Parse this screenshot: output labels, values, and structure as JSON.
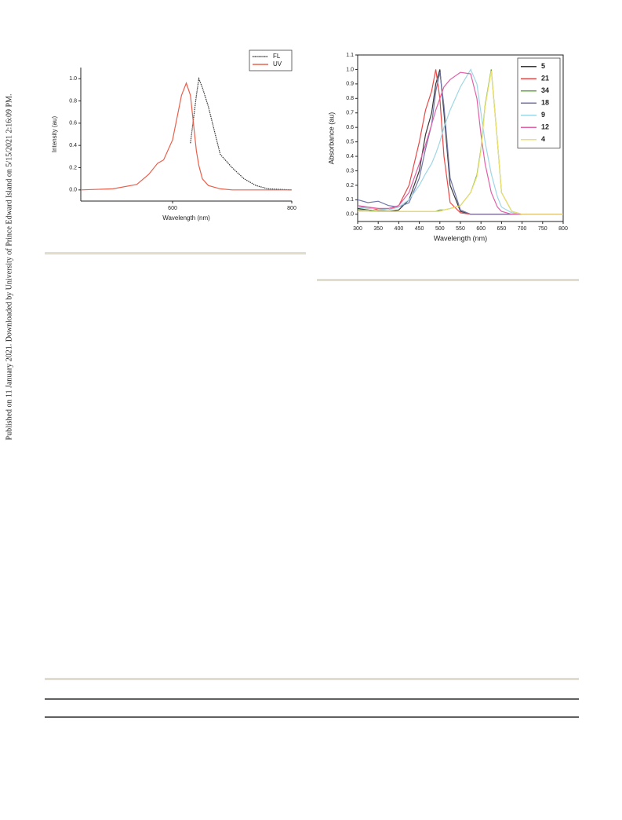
{
  "side_note": "Published on 11 January 2021. Downloaded by University of Prince Edward Island on 5/15/2021 2:16:09 PM.",
  "chart_data": [
    {
      "type": "line",
      "x_label": "Wavelength (nm)",
      "y_label": "Intensity (au)",
      "x": [
        446,
        500,
        540,
        560,
        575,
        585,
        600,
        615,
        623,
        630,
        640,
        644,
        650,
        660,
        680,
        700,
        720,
        740,
        760,
        800
      ],
      "series": [
        {
          "name": "FL",
          "color": "#333333",
          "style": "dotted",
          "values": [
            null,
            null,
            null,
            null,
            null,
            null,
            null,
            null,
            null,
            0.42,
            0.85,
            1.0,
            0.92,
            0.75,
            0.32,
            0.2,
            0.1,
            0.04,
            0.01,
            0.0
          ]
        },
        {
          "name": "UV",
          "color": "#e8604c",
          "style": "solid",
          "values": [
            0.0,
            0.01,
            0.05,
            0.14,
            0.24,
            0.27,
            0.45,
            0.85,
            0.96,
            0.85,
            0.35,
            0.22,
            0.1,
            0.04,
            0.01,
            0.0,
            0.0,
            0.0,
            0.0,
            0.0
          ]
        }
      ],
      "xlim": [
        446,
        800
      ],
      "xticks": [
        600,
        800
      ],
      "ylim": [
        -0.1,
        1.1
      ],
      "yticks": [
        {
          "value": 0,
          "label": "0.0"
        },
        {
          "value": 0.2,
          "label": "0.2"
        },
        {
          "value": 0.4,
          "label": "0.4"
        },
        {
          "value": 0.6,
          "label": "0.6"
        },
        {
          "value": 0.8,
          "label": "0.8"
        },
        {
          "value": 1,
          "label": "1.0"
        }
      ],
      "legend": "upper right",
      "frame": false
    },
    {
      "type": "line",
      "x_label": "Wavelength (nm)",
      "y_label": "Absorbance (au)",
      "x": [
        300,
        325,
        350,
        375,
        400,
        425,
        450,
        465,
        480,
        490,
        500,
        510,
        525,
        550,
        575,
        590,
        600,
        610,
        625,
        640,
        650,
        675,
        700,
        750,
        800
      ],
      "series": [
        {
          "name": "5",
          "color": "#3a3a3a",
          "style": "solid",
          "values": [
            0.04,
            0.03,
            0.02,
            0.02,
            0.03,
            0.1,
            0.3,
            0.55,
            0.7,
            0.9,
            1.0,
            0.7,
            0.2,
            0.02,
            0,
            0,
            0,
            0,
            0,
            0,
            0,
            0,
            0,
            0,
            0
          ]
        },
        {
          "name": "21",
          "color": "#e84848",
          "style": "solid",
          "values": [
            0.05,
            0.05,
            0.03,
            0.03,
            0.06,
            0.2,
            0.5,
            0.72,
            0.85,
            1.0,
            0.8,
            0.4,
            0.08,
            0.01,
            0,
            0,
            0,
            0,
            0,
            0,
            0,
            0,
            0,
            0,
            0
          ]
        },
        {
          "name": "34",
          "color": "#5fa83a",
          "style": "solid",
          "values": [
            0.03,
            0.03,
            0.02,
            0.02,
            0.02,
            0.02,
            0.02,
            0.02,
            0.02,
            0.02,
            0.03,
            0.03,
            0.04,
            0.06,
            0.15,
            0.27,
            0.45,
            0.75,
            1.0,
            0.5,
            0.15,
            0.02,
            0,
            0,
            0
          ]
        },
        {
          "name": "18",
          "color": "#7076aa",
          "style": "solid",
          "values": [
            0.1,
            0.08,
            0.09,
            0.06,
            0.05,
            0.08,
            0.25,
            0.45,
            0.62,
            0.85,
            0.98,
            0.75,
            0.25,
            0.03,
            0,
            0,
            0,
            0,
            0,
            0,
            0,
            0,
            0,
            0,
            0
          ]
        },
        {
          "name": "9",
          "color": "#9fd6e6",
          "style": "solid",
          "values": [
            0.05,
            0.04,
            0.04,
            0.03,
            0.05,
            0.1,
            0.2,
            0.28,
            0.35,
            0.42,
            0.5,
            0.6,
            0.72,
            0.88,
            1.0,
            0.9,
            0.7,
            0.5,
            0.28,
            0.12,
            0.05,
            0.01,
            0,
            0,
            0
          ]
        },
        {
          "name": "12",
          "color": "#e060a8",
          "style": "solid",
          "values": [
            0.06,
            0.05,
            0.04,
            0.04,
            0.06,
            0.15,
            0.35,
            0.48,
            0.62,
            0.72,
            0.8,
            0.88,
            0.93,
            0.98,
            0.97,
            0.8,
            0.55,
            0.35,
            0.15,
            0.05,
            0.02,
            0,
            0,
            0,
            0
          ]
        },
        {
          "name": "4",
          "color": "#eee070",
          "style": "solid",
          "values": [
            0.02,
            0.02,
            0.02,
            0.02,
            0.02,
            0.02,
            0.02,
            0.02,
            0.02,
            0.02,
            0.02,
            0.03,
            0.04,
            0.06,
            0.15,
            0.26,
            0.44,
            0.74,
            0.99,
            0.5,
            0.15,
            0.02,
            0,
            0,
            0
          ]
        }
      ],
      "xlim": [
        300,
        800
      ],
      "xticks": [
        300,
        350,
        400,
        450,
        500,
        550,
        600,
        650,
        700,
        750,
        800
      ],
      "ylim": [
        -0.05,
        1.1
      ],
      "yticks": [
        {
          "value": 0,
          "label": "0.0"
        },
        0.1,
        0.2,
        0.3,
        0.4,
        0.5,
        0.6,
        0.7,
        0.8,
        0.9,
        {
          "value": 1,
          "label": "1.0"
        },
        1.1
      ],
      "legend": "upper right",
      "frame": true
    }
  ]
}
